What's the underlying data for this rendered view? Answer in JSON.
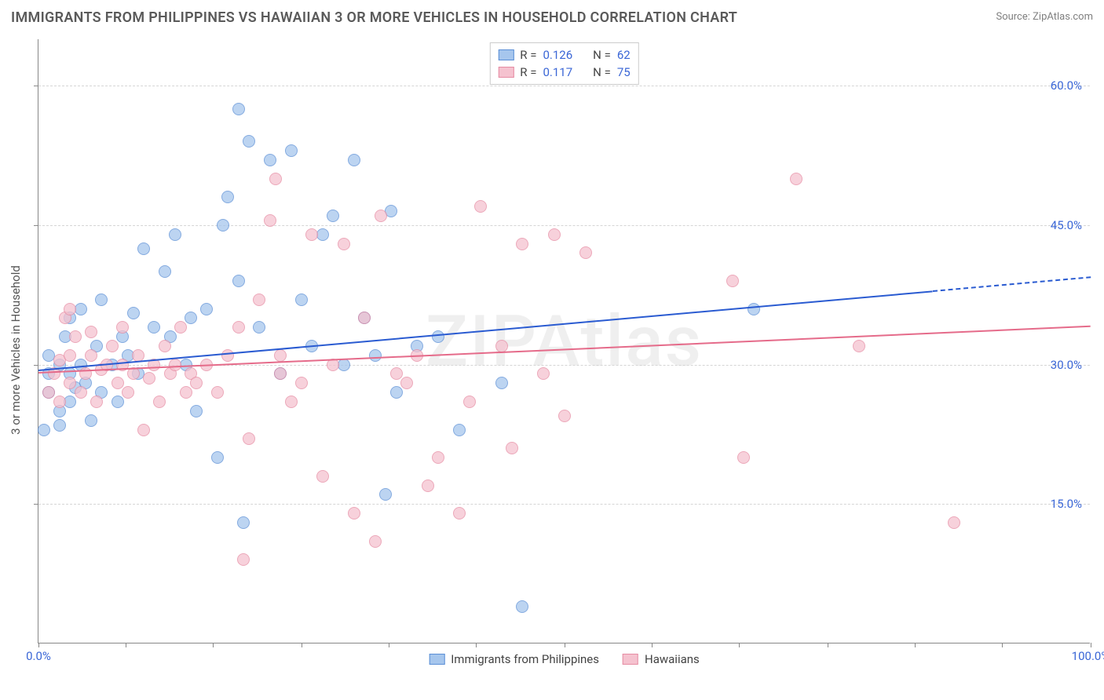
{
  "title": "IMMIGRANTS FROM PHILIPPINES VS HAWAIIAN 3 OR MORE VEHICLES IN HOUSEHOLD CORRELATION CHART",
  "source": "Source: ZipAtlas.com",
  "watermark": "ZIPAtlas",
  "chart": {
    "type": "scatter",
    "ylabel": "3 or more Vehicles in Household",
    "xlim": [
      0,
      100
    ],
    "ylim": [
      0,
      65
    ],
    "xtick_labels": [
      {
        "v": 0,
        "label": "0.0%"
      },
      {
        "v": 100,
        "label": "100.0%"
      }
    ],
    "xtick_positions": [
      0,
      8.3,
      16.6,
      25,
      33.3,
      41.6,
      50,
      58.3,
      66.6,
      75,
      83.3,
      91.6,
      100
    ],
    "ytick_labels": [
      {
        "v": 15,
        "label": "15.0%"
      },
      {
        "v": 30,
        "label": "30.0%"
      },
      {
        "v": 45,
        "label": "45.0%"
      },
      {
        "v": 60,
        "label": "60.0%"
      }
    ],
    "grid_y": [
      15,
      30,
      45,
      60
    ],
    "background_color": "#ffffff",
    "grid_color": "#d5d5d5",
    "axis_color": "#888888",
    "label_fontsize": 15,
    "title_fontsize": 18,
    "title_color": "#5a5a5a",
    "tick_color": "#3a66d6",
    "marker_radius": 8,
    "marker_border_width": 1.5,
    "trend_line_width": 2
  },
  "series": [
    {
      "name": "Immigrants from Philippines",
      "fill_color": "#a6c6ed",
      "stroke_color": "#5b8fd6",
      "line_color": "#2a5bd1",
      "R": "0.126",
      "N": "62",
      "trend": {
        "y_at_x0": 29.5,
        "y_at_x100": 39.5,
        "dash_from_x": 85
      },
      "points": [
        [
          1,
          29
        ],
        [
          1,
          27
        ],
        [
          1,
          31
        ],
        [
          2,
          25
        ],
        [
          2,
          23.5
        ],
        [
          2,
          30
        ],
        [
          2.5,
          33
        ],
        [
          3,
          26
        ],
        [
          3,
          29
        ],
        [
          3,
          35
        ],
        [
          3.5,
          27.5
        ],
        [
          4,
          30
        ],
        [
          4,
          36
        ],
        [
          4.5,
          28
        ],
        [
          5,
          24
        ],
        [
          5.5,
          32
        ],
        [
          6,
          27
        ],
        [
          6,
          37
        ],
        [
          7,
          30
        ],
        [
          7.5,
          26
        ],
        [
          8,
          33
        ],
        [
          8.5,
          31
        ],
        [
          9,
          35.5
        ],
        [
          9.5,
          29
        ],
        [
          10,
          42.5
        ],
        [
          11,
          34
        ],
        [
          12,
          40
        ],
        [
          12.5,
          33
        ],
        [
          13,
          44
        ],
        [
          14,
          30
        ],
        [
          14.5,
          35
        ],
        [
          15,
          25
        ],
        [
          16,
          36
        ],
        [
          17,
          20
        ],
        [
          17.5,
          45
        ],
        [
          18,
          48
        ],
        [
          19,
          39
        ],
        [
          19.5,
          13
        ],
        [
          19,
          57.5
        ],
        [
          20,
          54
        ],
        [
          21,
          34
        ],
        [
          22,
          52
        ],
        [
          23,
          29
        ],
        [
          24,
          53
        ],
        [
          25,
          37
        ],
        [
          26,
          32
        ],
        [
          27,
          44
        ],
        [
          28,
          46
        ],
        [
          29,
          30
        ],
        [
          30,
          52
        ],
        [
          31,
          35
        ],
        [
          32,
          31
        ],
        [
          33,
          16
        ],
        [
          33.5,
          46.5
        ],
        [
          34,
          27
        ],
        [
          36,
          32
        ],
        [
          38,
          33
        ],
        [
          40,
          23
        ],
        [
          44,
          28
        ],
        [
          46,
          4
        ],
        [
          68,
          36
        ],
        [
          0.5,
          23
        ]
      ]
    },
    {
      "name": "Hawaiians",
      "fill_color": "#f5c2cf",
      "stroke_color": "#e68ca3",
      "line_color": "#e56b8a",
      "R": "0.117",
      "N": "75",
      "trend": {
        "y_at_x0": 29.2,
        "y_at_x100": 34.2,
        "dash_from_x": 100
      },
      "points": [
        [
          1,
          27
        ],
        [
          1.5,
          29
        ],
        [
          2,
          26
        ],
        [
          2,
          30.5
        ],
        [
          2.5,
          35
        ],
        [
          3,
          28
        ],
        [
          3,
          31
        ],
        [
          3.5,
          33
        ],
        [
          3,
          36
        ],
        [
          4,
          27
        ],
        [
          4.5,
          29
        ],
        [
          5,
          31
        ],
        [
          5,
          33.5
        ],
        [
          5.5,
          26
        ],
        [
          6,
          29.5
        ],
        [
          6.5,
          30
        ],
        [
          7,
          32
        ],
        [
          7.5,
          28
        ],
        [
          8,
          30
        ],
        [
          8,
          34
        ],
        [
          8.5,
          27
        ],
        [
          9,
          29
        ],
        [
          9.5,
          31
        ],
        [
          10,
          23
        ],
        [
          10.5,
          28.5
        ],
        [
          11,
          30
        ],
        [
          11.5,
          26
        ],
        [
          12,
          32
        ],
        [
          12.5,
          29
        ],
        [
          13,
          30
        ],
        [
          13.5,
          34
        ],
        [
          14,
          27
        ],
        [
          14.5,
          29
        ],
        [
          15,
          28
        ],
        [
          16,
          30
        ],
        [
          17,
          27
        ],
        [
          18,
          31
        ],
        [
          19,
          34
        ],
        [
          19.5,
          9
        ],
        [
          20,
          22
        ],
        [
          21,
          37
        ],
        [
          22,
          45.5
        ],
        [
          22.5,
          50
        ],
        [
          23,
          31
        ],
        [
          23,
          29
        ],
        [
          24,
          26
        ],
        [
          25,
          28
        ],
        [
          26,
          44
        ],
        [
          27,
          18
        ],
        [
          28,
          30
        ],
        [
          29,
          43
        ],
        [
          30,
          14
        ],
        [
          31,
          35
        ],
        [
          32,
          11
        ],
        [
          32.5,
          46
        ],
        [
          34,
          29
        ],
        [
          35,
          28
        ],
        [
          36,
          31
        ],
        [
          37,
          17
        ],
        [
          38,
          20
        ],
        [
          40,
          14
        ],
        [
          41,
          26
        ],
        [
          42,
          47
        ],
        [
          44,
          32
        ],
        [
          45,
          21
        ],
        [
          46,
          43
        ],
        [
          48,
          29
        ],
        [
          49,
          44
        ],
        [
          50,
          24.5
        ],
        [
          52,
          42
        ],
        [
          66,
          39
        ],
        [
          67,
          20
        ],
        [
          72,
          50
        ],
        [
          78,
          32
        ],
        [
          87,
          13
        ]
      ]
    }
  ],
  "legend_top": {
    "R_label": "R =",
    "N_label": "N ="
  },
  "legend_bottom": [
    {
      "series": 0
    },
    {
      "series": 1
    }
  ]
}
